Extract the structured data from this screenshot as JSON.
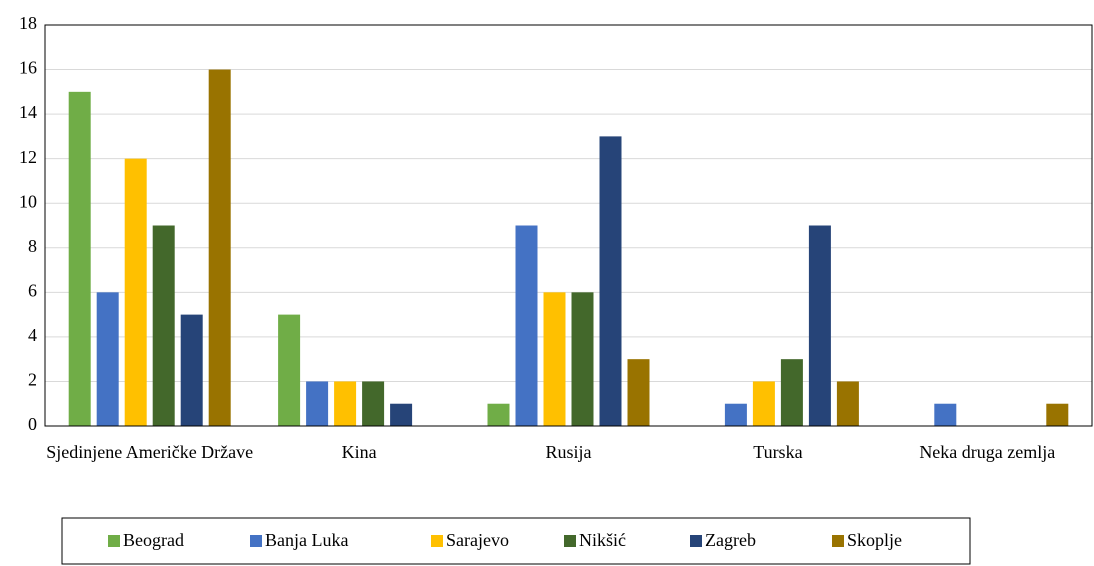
{
  "chart_data": {
    "type": "bar",
    "categories": [
      "Sjedinjene Američke Države",
      "Kina",
      "Rusija",
      "Turska",
      "Neka druga zemlja"
    ],
    "series": [
      {
        "name": "Beograd",
        "color": "#70ad47",
        "values": [
          15,
          5,
          1,
          0,
          0
        ]
      },
      {
        "name": "Banja Luka",
        "color": "#4472c4",
        "values": [
          6,
          2,
          9,
          1,
          1
        ]
      },
      {
        "name": "Sarajevo",
        "color": "#ffc000",
        "values": [
          12,
          2,
          6,
          2,
          0
        ]
      },
      {
        "name": "Nikšić",
        "color": "#43682b",
        "values": [
          9,
          2,
          6,
          3,
          0
        ]
      },
      {
        "name": "Zagreb",
        "color": "#264478",
        "values": [
          5,
          1,
          13,
          9,
          0
        ]
      },
      {
        "name": "Skoplje",
        "color": "#997300",
        "values": [
          16,
          0,
          3,
          2,
          1
        ]
      }
    ],
    "ylim": [
      0,
      18
    ],
    "yticks": [
      0,
      2,
      4,
      6,
      8,
      10,
      12,
      14,
      16,
      18
    ],
    "grid": true,
    "legend": "bottom"
  }
}
